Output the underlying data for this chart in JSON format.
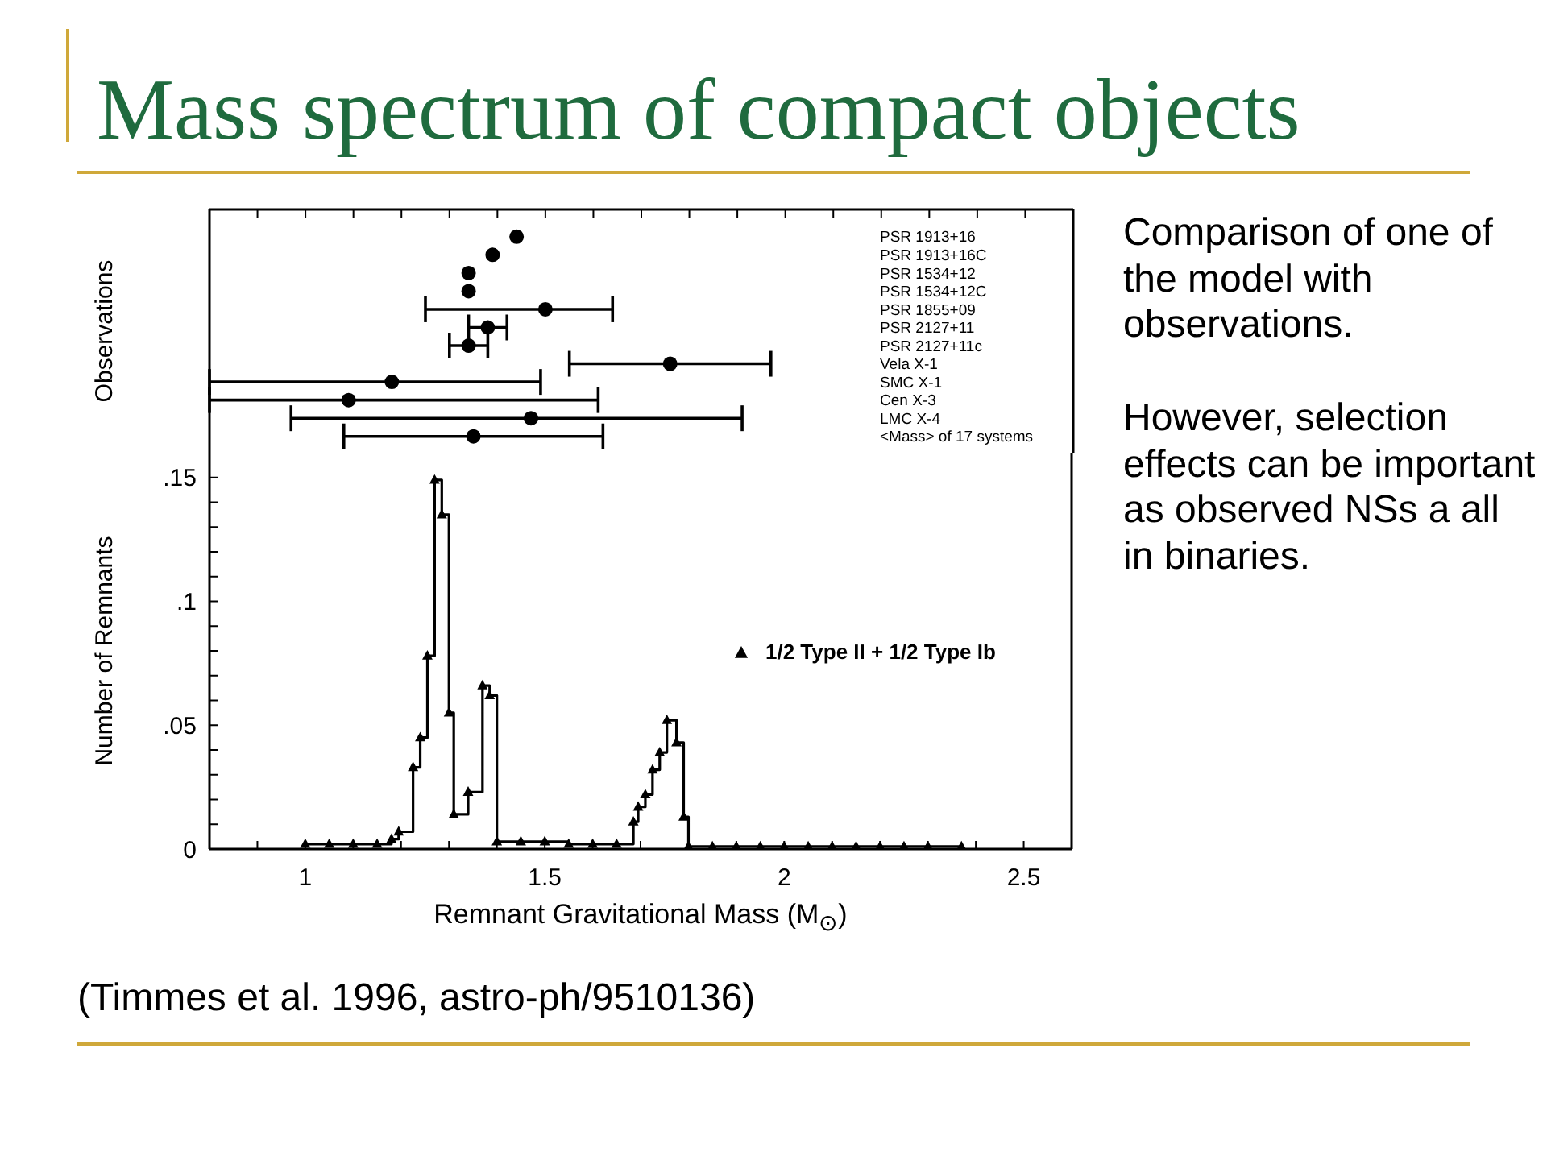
{
  "chart_data": [
    {
      "type": "scatter",
      "title": "Mass spectrum of compact objects",
      "ylabel": "Observations",
      "orientation": "horizontal",
      "color": "#000000",
      "marker": "circle",
      "tick_labels": "y",
      "categories": [
        "PSR 1913+16",
        "PSR 1913+16C",
        "PSR 1534+12",
        "PSR 1534+12C",
        "PSR 1855+09",
        "PSR 2127+11",
        "PSR 2127+11c",
        "Vela X-1",
        "SMC X-1",
        "Cen X-3",
        "LMC X-4",
        "<Mass> of 17 systems"
      ],
      "values": [
        1.44,
        1.39,
        1.34,
        1.34,
        1.5,
        1.38,
        1.34,
        1.76,
        1.18,
        1.09,
        1.47,
        1.35
      ],
      "errors": [
        null,
        null,
        null,
        null,
        [
          1.25,
          1.64
        ],
        [
          1.34,
          1.42
        ],
        [
          1.3,
          1.38
        ],
        [
          1.55,
          1.97
        ],
        [
          0.8,
          1.49
        ],
        [
          0.8,
          1.61
        ],
        [
          0.97,
          1.91
        ],
        [
          1.08,
          1.62
        ]
      ],
      "xlim": [
        0.8,
        2.6
      ],
      "xticks": [
        {
          "value": 0.9,
          "label": null
        },
        {
          "value": 1.0,
          "label": null
        },
        {
          "value": 1.1,
          "label": null
        },
        {
          "value": 1.2,
          "label": null
        },
        {
          "value": 1.3,
          "label": null
        },
        {
          "value": 1.4,
          "label": null
        },
        {
          "value": 1.5,
          "label": null
        },
        {
          "value": 1.6,
          "label": null
        },
        {
          "value": 1.7,
          "label": null
        },
        {
          "value": 1.8,
          "label": null
        },
        {
          "value": 1.9,
          "label": null
        },
        {
          "value": 2.0,
          "label": null
        },
        {
          "value": 2.1,
          "label": null
        },
        {
          "value": 2.2,
          "label": null
        },
        {
          "value": 2.3,
          "label": null
        },
        {
          "value": 2.4,
          "label": null
        },
        {
          "value": 2.5,
          "label": null
        }
      ],
      "annotations": [
        "Comparison of one of the model with observations.",
        "However, selection effects can be important as observed NSs a all in binaries.",
        "(Timmes et al. 1996, astro-ph/9510136)"
      ]
    },
    {
      "type": "step",
      "xlabel": "Remnant Gravitational Mass (M$_{⊙}$)",
      "ylabel": "Number of Remnants",
      "marker": "triangle",
      "legend": "right",
      "series": [
        {
          "name": "1/2 Type II + 1/2 Type Ib",
          "color": "#000000",
          "x": [
            1.0,
            1.05,
            1.1,
            1.15,
            1.18,
            1.195,
            1.225,
            1.24,
            1.255,
            1.27,
            1.285,
            1.3,
            1.31,
            1.34,
            1.37,
            1.385,
            1.4,
            1.45,
            1.5,
            1.55,
            1.6,
            1.65,
            1.685,
            1.695,
            1.71,
            1.725,
            1.74,
            1.755,
            1.775,
            1.79,
            1.8,
            1.85,
            1.9,
            1.95,
            2.0,
            2.05,
            2.1,
            2.15,
            2.2,
            2.25,
            2.3,
            2.37
          ],
          "values": [
            0.002,
            0.002,
            0.002,
            0.002,
            0.004,
            0.007,
            0.033,
            0.045,
            0.078,
            0.149,
            0.135,
            0.055,
            0.014,
            0.023,
            0.066,
            0.062,
            0.003,
            0.003,
            0.003,
            0.002,
            0.002,
            0.002,
            0.011,
            0.017,
            0.022,
            0.032,
            0.039,
            0.052,
            0.043,
            0.013,
            0.001,
            0.001,
            0.001,
            0.001,
            0.001,
            0.001,
            0.001,
            0.001,
            0.001,
            0.001,
            0.001,
            0.001
          ]
        }
      ],
      "xlim": [
        0.8,
        2.6
      ],
      "xticks": [
        {
          "value": 0.9,
          "label": null
        },
        1,
        {
          "value": 1.1,
          "label": null
        },
        {
          "value": 1.2,
          "label": null
        },
        {
          "value": 1.3,
          "label": null
        },
        {
          "value": 1.4,
          "label": null
        },
        1.5,
        {
          "value": 1.6,
          "label": null
        },
        {
          "value": 1.7,
          "label": null
        },
        {
          "value": 1.8,
          "label": null
        },
        {
          "value": 1.9,
          "label": null
        },
        2,
        {
          "value": 2.1,
          "label": null
        },
        {
          "value": 2.2,
          "label": null
        },
        {
          "value": 2.3,
          "label": null
        },
        {
          "value": 2.4,
          "label": null
        },
        2.5
      ],
      "ylim": [
        0,
        0.16
      ],
      "yticks": [
        0,
        {
          "value": 0.01,
          "label": null
        },
        {
          "value": 0.02,
          "label": null
        },
        {
          "value": 0.03,
          "label": null
        },
        {
          "value": 0.04,
          "label": null
        },
        {
          "value": 0.05,
          "label": ".05"
        },
        {
          "value": 0.06,
          "label": null
        },
        {
          "value": 0.07,
          "label": null
        },
        {
          "value": 0.08,
          "label": null
        },
        {
          "value": 0.09,
          "label": null
        },
        {
          "value": 0.1,
          "label": ".1"
        },
        {
          "value": 0.11,
          "label": null
        },
        {
          "value": 0.12,
          "label": null
        },
        {
          "value": 0.13,
          "label": null
        },
        {
          "value": 0.14,
          "label": null
        },
        {
          "value": 0.15,
          "label": ".15"
        }
      ]
    }
  ]
}
